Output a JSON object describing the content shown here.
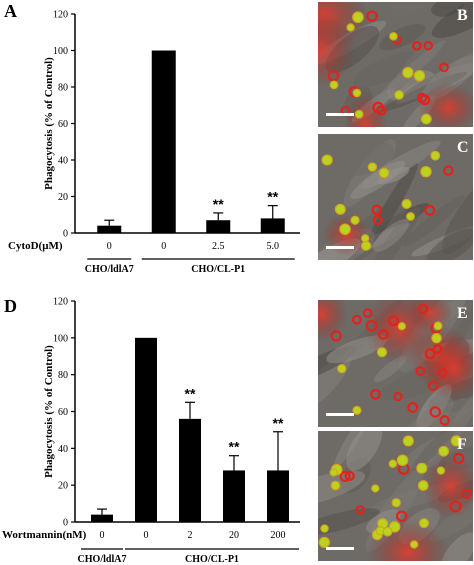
{
  "chart_data": [
    {
      "type": "bar",
      "panel": "A",
      "ylabel": "Phagocytosis (% of Control)",
      "ylim": [
        0,
        120
      ],
      "yticks": [
        0,
        20,
        40,
        60,
        80,
        100,
        120
      ],
      "treatment_label": "CytoD(μM)",
      "categories": [
        "0",
        "0",
        "2.5",
        "5.0"
      ],
      "values": [
        4,
        100,
        7,
        8
      ],
      "errors": [
        3,
        0,
        4,
        7
      ],
      "significance": [
        "",
        "",
        "**",
        "**"
      ],
      "groups": [
        {
          "label": "CHO/ldlA7",
          "from": 0,
          "to": 0
        },
        {
          "label": "CHO/CL-P1",
          "from": 1,
          "to": 3
        }
      ]
    },
    {
      "type": "bar",
      "panel": "D",
      "ylabel": "Phagocytosis (% of Control)",
      "ylim": [
        0,
        120
      ],
      "yticks": [
        0,
        20,
        40,
        60,
        80,
        100,
        120
      ],
      "treatment_label": "Wortmannin(nM)",
      "categories": [
        "0",
        "0",
        "2",
        "20",
        "200"
      ],
      "values": [
        4,
        100,
        56,
        28,
        28
      ],
      "errors": [
        3,
        0,
        9,
        8,
        21
      ],
      "significance": [
        "",
        "",
        "**",
        "**",
        "**"
      ],
      "groups": [
        {
          "label": "CHO/ldlA7",
          "from": 0,
          "to": 0
        },
        {
          "label": "CHO/CL-P1",
          "from": 1,
          "to": 4
        }
      ]
    }
  ],
  "micrographs": [
    {
      "letter": "B"
    },
    {
      "letter": "C"
    },
    {
      "letter": "E"
    },
    {
      "letter": "F"
    }
  ],
  "colors": {
    "bar": "#000000",
    "cell_background": "#6e6a66",
    "red_fluor": "#e0231c",
    "green_fluor": "#b7d520",
    "scale_bar": "#ffffff"
  }
}
